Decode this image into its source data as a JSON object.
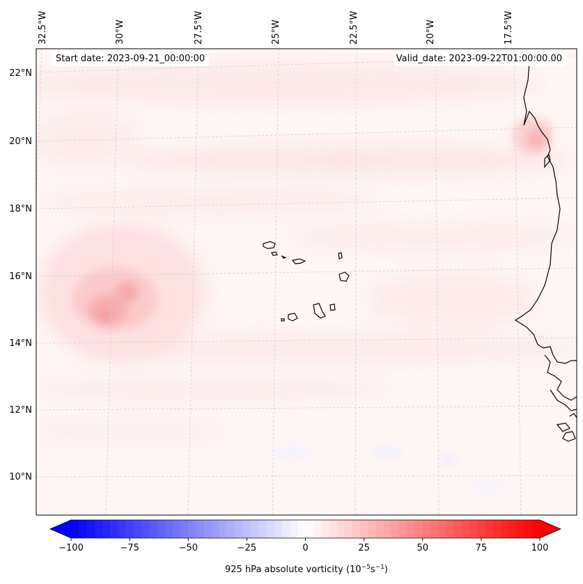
{
  "map": {
    "start_label": "Start date: 2023-09-21_00:00:00",
    "valid_label": "Valid_date: 2023-09-22T01:00:00.00",
    "lat_labels": [
      "22°N",
      "20°N",
      "18°N",
      "16°N",
      "14°N",
      "12°N",
      "10°N"
    ],
    "lon_labels": [
      "32.5°W",
      "30°W",
      "27.5°W",
      "25°W",
      "22.5°W",
      "20°W",
      "17.5°W"
    ],
    "features": {
      "vortex_center_lon": "30.5°W",
      "vortex_center_lat": "15°N"
    }
  },
  "colorbar": {
    "label": "925 hPa absolute vorticity (10⁻⁵s⁻¹)",
    "label_main": "925 hPa absolute vorticity (10",
    "label_exp1": "−5",
    "label_mid": "s",
    "label_exp2": "−1",
    "label_end": ")",
    "tick_labels": [
      "−100",
      "−75",
      "−50",
      "−25",
      "0",
      "25",
      "50",
      "75",
      "100"
    ],
    "min": -100,
    "max": 100,
    "levels": 60,
    "neg_color": "#0000ff",
    "mid_color": "#ffffff",
    "pos_color": "#ff0000"
  }
}
